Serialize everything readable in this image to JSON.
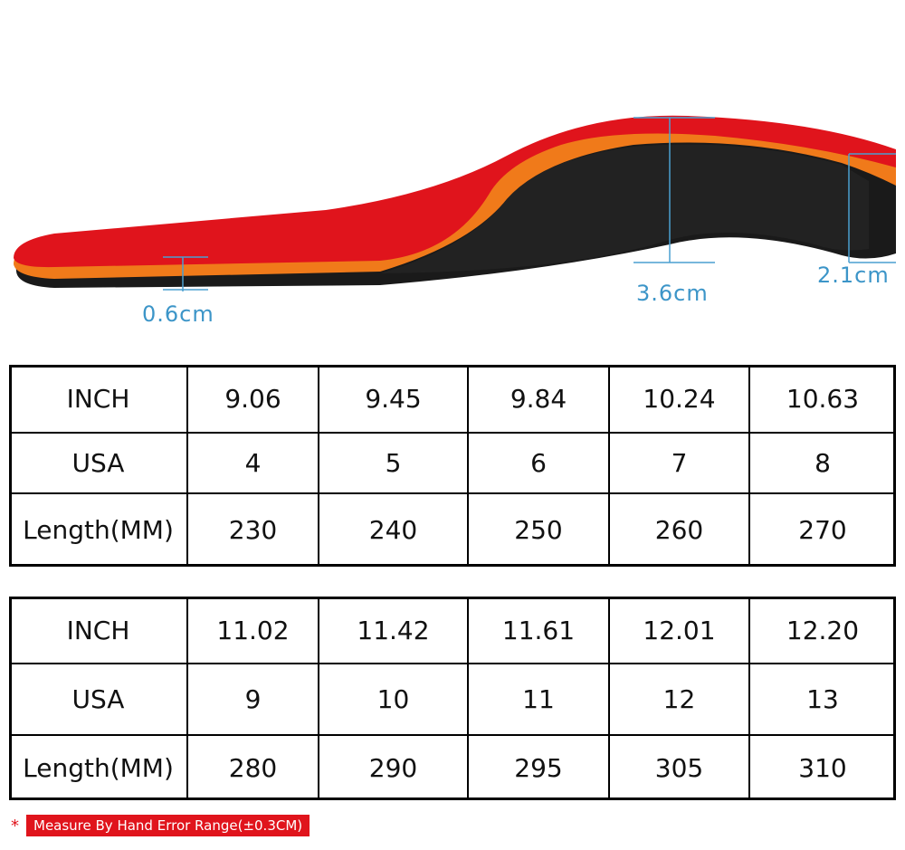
{
  "measurements": [
    "0.6cm",
    "3.6cm",
    "2.1cm"
  ],
  "tables": [
    {
      "rows": [
        [
          "INCH",
          "9.06",
          "9.45",
          "9.84",
          "10.24",
          "10.63"
        ],
        [
          "USA",
          "4",
          "5",
          "6",
          "7",
          "8"
        ],
        [
          "Length(MM)",
          "230",
          "240",
          "250",
          "260",
          "270"
        ]
      ]
    },
    {
      "rows": [
        [
          "INCH",
          "11.02",
          "11.42",
          "11.61",
          "12.01",
          "12.20"
        ],
        [
          "USA",
          "9",
          "10",
          "11",
          "12",
          "13"
        ],
        [
          "Length(MM)",
          "280",
          "290",
          "295",
          "305",
          "310"
        ]
      ]
    }
  ],
  "footnote": {
    "marker": "*",
    "text": "Measure By Hand Error Range(±0.3CM)"
  }
}
